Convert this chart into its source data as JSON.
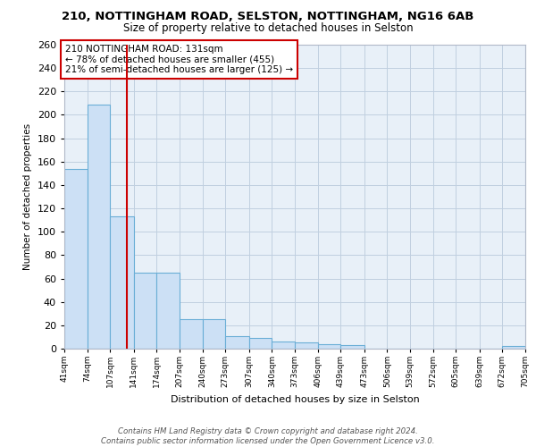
{
  "title1": "210, NOTTINGHAM ROAD, SELSTON, NOTTINGHAM, NG16 6AB",
  "title2": "Size of property relative to detached houses in Selston",
  "xlabel": "Distribution of detached houses by size in Selston",
  "ylabel": "Number of detached properties",
  "bar_edges": [
    41,
    74,
    107,
    141,
    174,
    207,
    240,
    273,
    307,
    340,
    373,
    406,
    439,
    473,
    506,
    539,
    572,
    605,
    639,
    672,
    705
  ],
  "bar_heights": [
    154,
    209,
    113,
    65,
    65,
    25,
    25,
    11,
    9,
    6,
    5,
    4,
    3,
    0,
    0,
    0,
    0,
    0,
    0,
    2
  ],
  "bar_color": "#cce0f5",
  "bar_edge_color": "#6aaed6",
  "vline_x": 131,
  "vline_color": "#cc0000",
  "annotation_text": "210 NOTTINGHAM ROAD: 131sqm\n← 78% of detached houses are smaller (455)\n21% of semi-detached houses are larger (125) →",
  "annotation_box_color": "#ffffff",
  "annotation_box_edge": "#cc0000",
  "bg_color": "#e8f0f8",
  "grid_color": "#c0cfe0",
  "ylim": [
    0,
    260
  ],
  "tick_labels": [
    "41sqm",
    "74sqm",
    "107sqm",
    "141sqm",
    "174sqm",
    "207sqm",
    "240sqm",
    "273sqm",
    "307sqm",
    "340sqm",
    "373sqm",
    "406sqm",
    "439sqm",
    "473sqm",
    "506sqm",
    "539sqm",
    "572sqm",
    "605sqm",
    "639sqm",
    "672sqm",
    "705sqm"
  ],
  "footer": "Contains HM Land Registry data © Crown copyright and database right 2024.\nContains public sector information licensed under the Open Government Licence v3.0."
}
